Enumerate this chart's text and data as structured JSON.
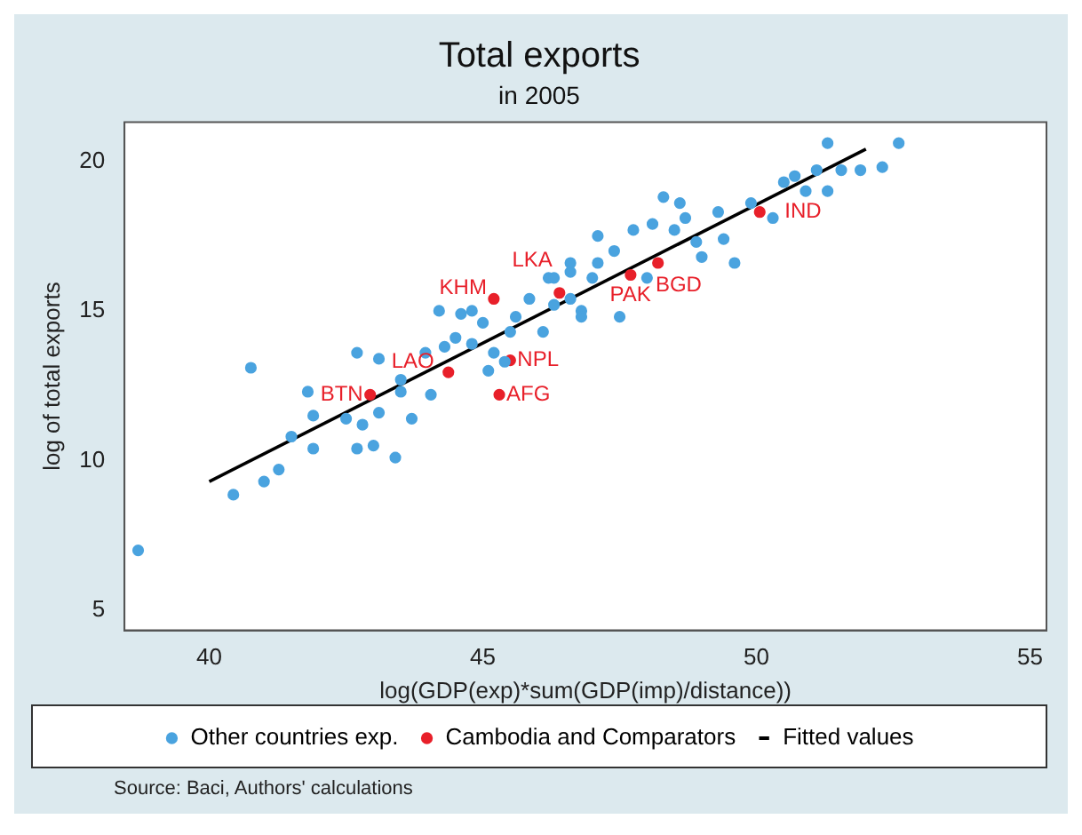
{
  "chart_data": {
    "type": "scatter",
    "title": "Total exports",
    "subtitle": "in 2005",
    "xlabel": "log(GDP(exp)*sum(GDP(imp)/distance))",
    "ylabel": "log of total exports",
    "xlim": [
      38.45,
      55.3
    ],
    "ylim": [
      4.33,
      21.3
    ],
    "xticks": [
      40,
      45,
      50,
      55
    ],
    "yticks": [
      5,
      10,
      15,
      20
    ],
    "grid": false,
    "legend": "bottom",
    "annotations": [
      "Source: Baci, Authors' calculations"
    ],
    "series": [
      {
        "name": "Other countries exp.",
        "marker": "circle",
        "color": "#4aa3df",
        "x": [
          38.7,
          40.76,
          40.44,
          41.0,
          41.27,
          41.5,
          41.8,
          41.9,
          41.9,
          42.5,
          42.7,
          42.8,
          42.7,
          43.0,
          43.4,
          43.1,
          43.1,
          43.5,
          43.7,
          43.5,
          43.95,
          44.05,
          44.2,
          44.3,
          44.5,
          44.6,
          44.8,
          45.0,
          45.2,
          45.1,
          45.4,
          45.6,
          45.85,
          46.1,
          46.2,
          46.3,
          46.6,
          46.8,
          47.0,
          44.8,
          45.5,
          46.8,
          47.5,
          46.6,
          47.1,
          47.4,
          47.75,
          48.1,
          48.3,
          48.5,
          48.6,
          48.7,
          48.9,
          49.0,
          49.3,
          49.4,
          49.6,
          49.9,
          50.3,
          50.5,
          50.7,
          50.9,
          51.1,
          51.3,
          51.3,
          51.55,
          51.9,
          52.3,
          52.6,
          48.0,
          47.1,
          46.6,
          46.3
        ],
        "values": [
          7.0,
          13.1,
          8.86,
          9.3,
          9.7,
          10.8,
          12.3,
          11.5,
          10.4,
          11.4,
          13.6,
          11.2,
          10.4,
          10.5,
          10.1,
          11.6,
          13.4,
          12.7,
          11.4,
          12.3,
          13.6,
          12.2,
          15.0,
          13.8,
          14.1,
          14.9,
          13.9,
          14.6,
          13.6,
          13.0,
          13.3,
          14.8,
          15.4,
          14.3,
          16.1,
          15.2,
          16.6,
          15.0,
          16.1,
          15.0,
          14.3,
          14.8,
          14.8,
          16.3,
          16.6,
          17.0,
          17.7,
          17.9,
          18.8,
          17.7,
          18.6,
          18.1,
          17.3,
          16.8,
          18.3,
          17.4,
          16.6,
          18.6,
          18.1,
          19.3,
          19.5,
          19.0,
          19.7,
          20.6,
          19.0,
          19.7,
          19.7,
          19.8,
          20.6,
          16.1,
          17.5,
          15.4,
          16.1
        ]
      },
      {
        "name": "Cambodia and Comparators",
        "marker": "circle",
        "color": "#e8202a",
        "x": [
          42.94,
          44.37,
          45.3,
          45.5,
          45.2,
          46.4,
          47.7,
          48.2,
          50.06
        ],
        "values": [
          12.2,
          12.95,
          12.2,
          13.35,
          15.4,
          15.6,
          16.2,
          16.6,
          18.3
        ],
        "value_labels": [
          "BTN",
          "LAO",
          "AFG",
          "NPL",
          "KHM",
          "LKA",
          "BGD",
          "PAK",
          "IND"
        ]
      },
      {
        "name": "Fitted values",
        "type": "line",
        "marker": "none",
        "color": "#000000",
        "x": [
          40,
          52
        ],
        "values": [
          9.3,
          20.4
        ]
      }
    ]
  }
}
